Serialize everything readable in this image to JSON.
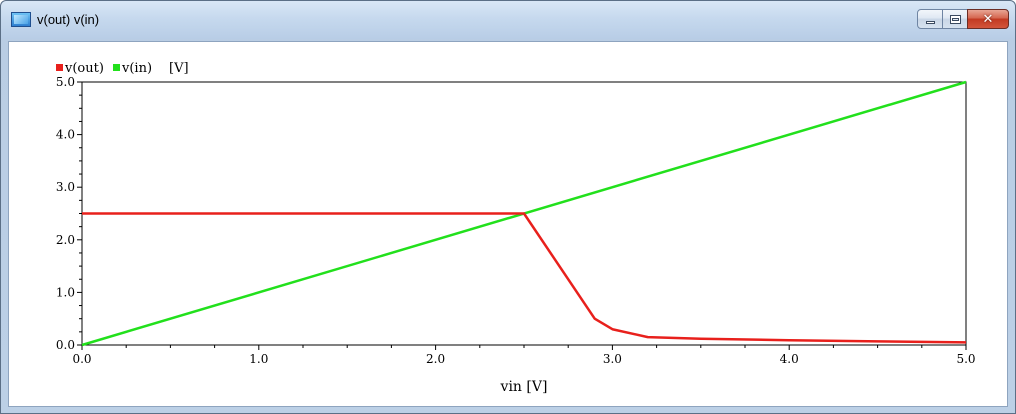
{
  "window": {
    "title": "v(out) v(in)",
    "app_icon": "plot-window-icon",
    "buttons": {
      "minimize": "minimize-icon",
      "maximize": "maximize-icon",
      "close": "close-icon",
      "close_glyph": "✕"
    }
  },
  "chart_data": {
    "type": "line",
    "title": "",
    "xlabel": "vin [V]",
    "ylabel": "",
    "unit_label": "[V]",
    "xlim": [
      0.0,
      5.0
    ],
    "ylim": [
      0.0,
      5.0
    ],
    "x_ticks": [
      "0.0",
      "1.0",
      "2.0",
      "3.0",
      "4.0",
      "5.0"
    ],
    "y_ticks": [
      "0.0",
      "1.0",
      "2.0",
      "3.0",
      "4.0",
      "5.0"
    ],
    "grid": false,
    "legend_position": "top-left",
    "series": [
      {
        "name": "v(out)",
        "color": "#e8201c",
        "x": [
          0.0,
          2.5,
          2.9,
          3.0,
          3.2,
          3.5,
          4.0,
          4.5,
          5.0
        ],
        "y": [
          2.5,
          2.5,
          0.5,
          0.3,
          0.15,
          0.12,
          0.09,
          0.07,
          0.05
        ]
      },
      {
        "name": "v(in)",
        "color": "#22e01c",
        "x": [
          0.0,
          5.0
        ],
        "y": [
          0.0,
          5.0
        ]
      }
    ]
  }
}
